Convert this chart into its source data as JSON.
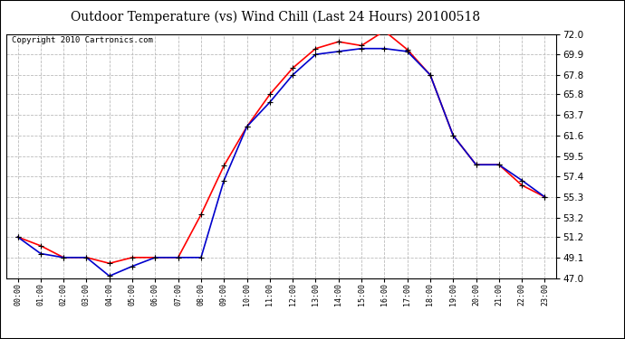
{
  "title": "Outdoor Temperature (vs) Wind Chill (Last 24 Hours) 20100518",
  "copyright": "Copyright 2010 Cartronics.com",
  "x_labels": [
    "00:00",
    "01:00",
    "02:00",
    "03:00",
    "04:00",
    "05:00",
    "06:00",
    "07:00",
    "08:00",
    "09:00",
    "10:00",
    "11:00",
    "12:00",
    "13:00",
    "14:00",
    "15:00",
    "16:00",
    "17:00",
    "18:00",
    "19:00",
    "20:00",
    "21:00",
    "22:00",
    "23:00"
  ],
  "temp_red": [
    51.2,
    50.3,
    49.1,
    49.1,
    48.5,
    49.1,
    49.1,
    49.1,
    53.5,
    58.5,
    62.5,
    65.8,
    68.5,
    70.5,
    71.2,
    70.8,
    72.3,
    70.4,
    67.8,
    61.6,
    58.6,
    58.6,
    56.5,
    55.3
  ],
  "temp_blue": [
    51.2,
    49.5,
    49.1,
    49.1,
    47.2,
    48.2,
    49.1,
    49.1,
    49.1,
    57.0,
    62.5,
    65.0,
    67.8,
    69.9,
    70.2,
    70.5,
    70.5,
    70.2,
    67.8,
    61.6,
    58.6,
    58.6,
    57.0,
    55.3
  ],
  "ylim": [
    47.0,
    72.0
  ],
  "yticks": [
    47.0,
    49.1,
    51.2,
    53.2,
    55.3,
    57.4,
    59.5,
    61.6,
    63.7,
    65.8,
    67.8,
    69.9,
    72.0
  ],
  "color_red": "#ff0000",
  "color_blue": "#0000cc",
  "bg_color": "#ffffff",
  "grid_color": "#bbbbbb",
  "title_fontsize": 10,
  "copyright_fontsize": 6.5
}
